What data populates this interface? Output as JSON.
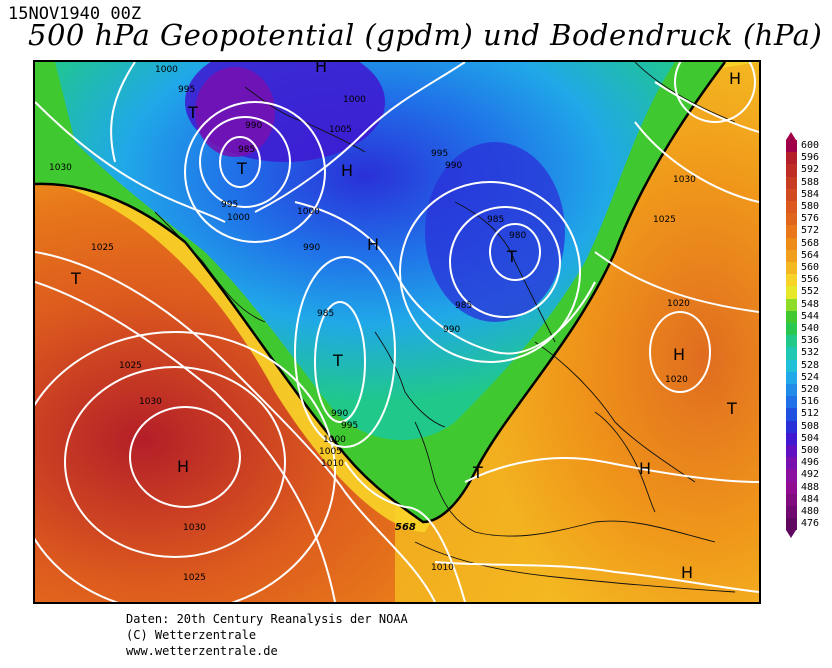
{
  "header": {
    "date": "15NOV1940 00Z",
    "title": "500 hPa Geopotential (gpdm) und Bodendruck (hPa)"
  },
  "footer": {
    "line1": "Daten: 20th Century Reanalysis der NOAA",
    "line2": "(C) Wetterzentrale",
    "line3": "www.wetterzentrale.de"
  },
  "legend": {
    "levels": [
      "600",
      "596",
      "592",
      "588",
      "584",
      "580",
      "576",
      "572",
      "568",
      "564",
      "560",
      "556",
      "552",
      "548",
      "544",
      "540",
      "536",
      "532",
      "528",
      "524",
      "520",
      "516",
      "512",
      "508",
      "504",
      "500",
      "496",
      "492",
      "488",
      "484",
      "480",
      "476"
    ],
    "colors": [
      "#a0004a",
      "#b41e28",
      "#be2c24",
      "#c83c22",
      "#d24a20",
      "#dc5a1e",
      "#e0661c",
      "#e8781a",
      "#ee8c18",
      "#f0a01c",
      "#f4b820",
      "#f8d428",
      "#e8e82a",
      "#8cdc28",
      "#40c830",
      "#28c850",
      "#20c88a",
      "#20c8b4",
      "#20c0d8",
      "#20a8e8",
      "#208ce8",
      "#2070e8",
      "#2050e0",
      "#2a30d8",
      "#4018d0",
      "#6010c0",
      "#7810b0",
      "#8c10a0",
      "#900c90",
      "#800c80",
      "#700a70",
      "#600860"
    ]
  },
  "map": {
    "pressure_labels": [
      "1000",
      "995",
      "990",
      "985",
      "995",
      "1000",
      "1030",
      "1000",
      "1005",
      "995",
      "990",
      "985",
      "980",
      "985",
      "990",
      "1000",
      "990",
      "985",
      "1025",
      "1030",
      "1025",
      "1030",
      "1030",
      "1025",
      "1020",
      "1020",
      "990",
      "995",
      "1000",
      "1005",
      "1010",
      "1010",
      "1025",
      "1030",
      "1025",
      "1000",
      "995",
      "985"
    ],
    "systems": [
      "H",
      "T",
      "T",
      "H",
      "T",
      "H",
      "T",
      "T",
      "H",
      "H",
      "H",
      "H",
      "T",
      "H",
      "T",
      "H"
    ],
    "contour_568_label": "568"
  }
}
